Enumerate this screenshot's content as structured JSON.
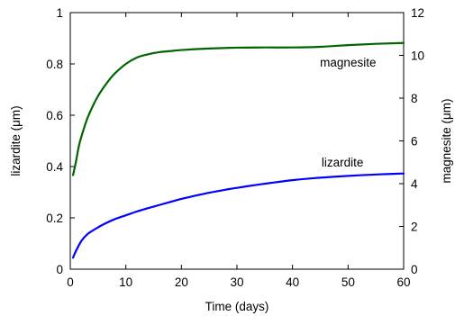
{
  "chart_data": {
    "type": "line",
    "xlabel": "Time (days)",
    "ylabel_left": "lizardite (μm)",
    "ylabel_right": "magnesite (μm)",
    "xlim": [
      0,
      60
    ],
    "ylim_left": [
      0,
      1
    ],
    "ylim_right": [
      0,
      12
    ],
    "x_ticks": [
      0,
      10,
      20,
      30,
      40,
      50,
      60
    ],
    "y_left_ticks": [
      0,
      0.2,
      0.4,
      0.6,
      0.8,
      1
    ],
    "y_right_ticks": [
      0,
      2,
      4,
      6,
      8,
      10,
      12
    ],
    "x_tick_labels": [
      "0",
      "10",
      "20",
      "30",
      "40",
      "50",
      "60"
    ],
    "y_left_tick_labels": [
      "0",
      "0.2",
      "0.4",
      "0.6",
      "0.8",
      "1"
    ],
    "y_right_tick_labels": [
      "0",
      "2",
      "4",
      "6",
      "8",
      "10",
      "12"
    ],
    "grid": false,
    "series": [
      {
        "name": "lizardite",
        "axis": "left",
        "color": "#0000ff",
        "x": [
          0.5,
          1,
          2,
          3,
          4,
          5,
          6,
          8,
          10,
          12,
          14,
          16,
          18,
          20,
          22,
          25,
          28,
          30,
          33,
          36,
          40,
          44,
          48,
          52,
          56,
          60
        ],
        "y": [
          0.045,
          0.07,
          0.11,
          0.135,
          0.15,
          0.163,
          0.175,
          0.195,
          0.21,
          0.225,
          0.238,
          0.25,
          0.262,
          0.274,
          0.284,
          0.298,
          0.31,
          0.317,
          0.327,
          0.336,
          0.347,
          0.355,
          0.361,
          0.366,
          0.37,
          0.373
        ]
      },
      {
        "name": "magnesite",
        "axis": "right",
        "color": "#006400",
        "x": [
          0.5,
          1,
          1.5,
          2,
          3,
          4,
          5,
          6,
          7,
          8,
          10,
          12,
          14,
          16,
          18,
          20,
          25,
          30,
          35,
          40,
          45,
          50,
          55,
          60
        ],
        "y": [
          4.4,
          5.0,
          5.7,
          6.2,
          7.0,
          7.6,
          8.1,
          8.5,
          8.85,
          9.15,
          9.6,
          9.9,
          10.05,
          10.15,
          10.2,
          10.25,
          10.32,
          10.36,
          10.37,
          10.37,
          10.4,
          10.48,
          10.54,
          10.58
        ]
      }
    ],
    "annotations": [
      {
        "text": "magnesite",
        "x": 50,
        "y_left": 0.79
      },
      {
        "text": "lizardite",
        "x": 49,
        "y_left": 0.4
      }
    ]
  }
}
